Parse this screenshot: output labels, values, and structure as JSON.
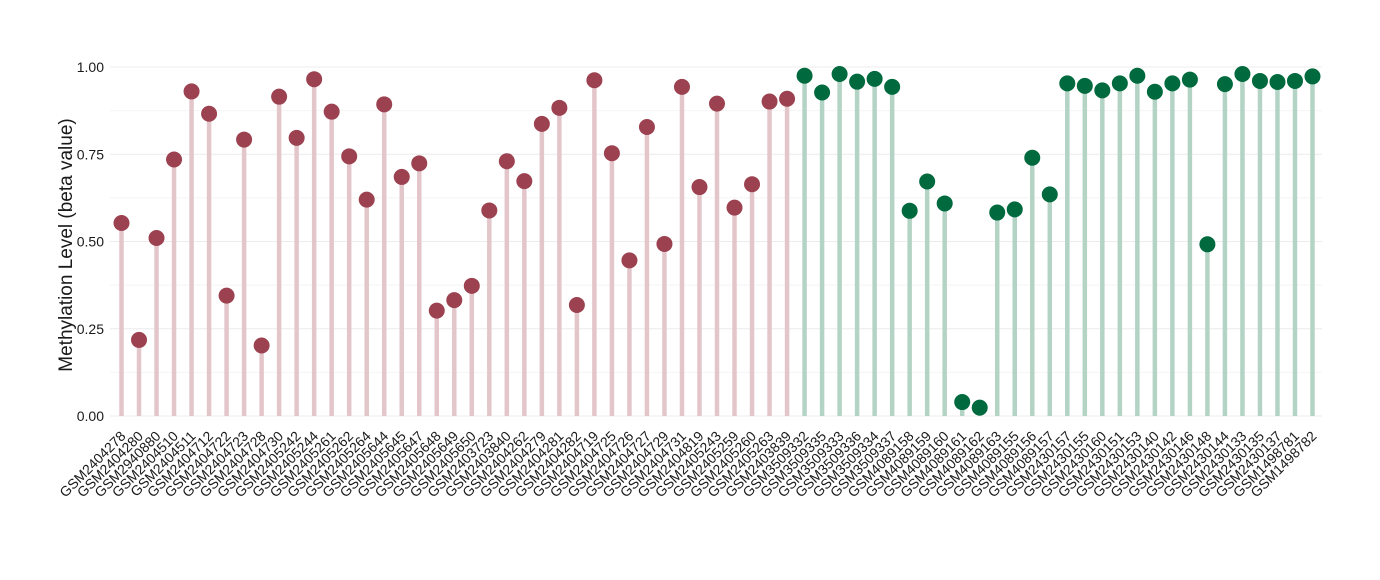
{
  "chart_data": {
    "type": "lollipop",
    "ylabel": "Methylation Level (beta value)",
    "ylim": [
      0,
      1
    ],
    "yticks": [
      "0.00",
      "0.25",
      "0.50",
      "0.75",
      "1.00"
    ],
    "grid": true,
    "legend": "none",
    "colors": {
      "group_a_point": "#9c4150",
      "group_a_stem": "#e3c6ca",
      "group_b_point": "#006a3e",
      "group_b_stem": "#b3d3c5",
      "gridline": "#ececec"
    },
    "samples": [
      {
        "label": "GSM2404278",
        "value": 0.553,
        "group": "a"
      },
      {
        "label": "GSM2404280",
        "value": 0.218,
        "group": "a"
      },
      {
        "label": "GSM2940880",
        "value": 0.51,
        "group": "a"
      },
      {
        "label": "GSM2404510",
        "value": 0.735,
        "group": "a"
      },
      {
        "label": "GSM2404511",
        "value": 0.93,
        "group": "a"
      },
      {
        "label": "GSM2404712",
        "value": 0.866,
        "group": "a"
      },
      {
        "label": "GSM2404722",
        "value": 0.345,
        "group": "a"
      },
      {
        "label": "GSM2404723",
        "value": 0.792,
        "group": "a"
      },
      {
        "label": "GSM2404728",
        "value": 0.202,
        "group": "a"
      },
      {
        "label": "GSM2404730",
        "value": 0.915,
        "group": "a"
      },
      {
        "label": "GSM2405242",
        "value": 0.797,
        "group": "a"
      },
      {
        "label": "GSM2405244",
        "value": 0.965,
        "group": "a"
      },
      {
        "label": "GSM2405261",
        "value": 0.872,
        "group": "a"
      },
      {
        "label": "GSM2405262",
        "value": 0.744,
        "group": "a"
      },
      {
        "label": "GSM2405264",
        "value": 0.62,
        "group": "a"
      },
      {
        "label": "GSM2405644",
        "value": 0.893,
        "group": "a"
      },
      {
        "label": "GSM2405645",
        "value": 0.685,
        "group": "a"
      },
      {
        "label": "GSM2405647",
        "value": 0.724,
        "group": "a"
      },
      {
        "label": "GSM2405648",
        "value": 0.302,
        "group": "a"
      },
      {
        "label": "GSM2405649",
        "value": 0.332,
        "group": "a"
      },
      {
        "label": "GSM2405650",
        "value": 0.373,
        "group": "a"
      },
      {
        "label": "GSM2403723",
        "value": 0.589,
        "group": "a"
      },
      {
        "label": "GSM2403840",
        "value": 0.73,
        "group": "a"
      },
      {
        "label": "GSM2404262",
        "value": 0.673,
        "group": "a"
      },
      {
        "label": "GSM2404279",
        "value": 0.837,
        "group": "a"
      },
      {
        "label": "GSM2404281",
        "value": 0.883,
        "group": "a"
      },
      {
        "label": "GSM2404282",
        "value": 0.318,
        "group": "a"
      },
      {
        "label": "GSM2404719",
        "value": 0.962,
        "group": "a"
      },
      {
        "label": "GSM2404725",
        "value": 0.753,
        "group": "a"
      },
      {
        "label": "GSM2404726",
        "value": 0.446,
        "group": "a"
      },
      {
        "label": "GSM2404727",
        "value": 0.828,
        "group": "a"
      },
      {
        "label": "GSM2404729",
        "value": 0.493,
        "group": "a"
      },
      {
        "label": "GSM2404731",
        "value": 0.943,
        "group": "a"
      },
      {
        "label": "GSM2404819",
        "value": 0.656,
        "group": "a"
      },
      {
        "label": "GSM2405243",
        "value": 0.895,
        "group": "a"
      },
      {
        "label": "GSM2405259",
        "value": 0.597,
        "group": "a"
      },
      {
        "label": "GSM2405260",
        "value": 0.664,
        "group": "a"
      },
      {
        "label": "GSM2405263",
        "value": 0.901,
        "group": "a"
      },
      {
        "label": "GSM2403839",
        "value": 0.909,
        "group": "a"
      },
      {
        "label": "GSM3509332",
        "value": 0.975,
        "group": "b"
      },
      {
        "label": "GSM3509335",
        "value": 0.927,
        "group": "b"
      },
      {
        "label": "GSM3509333",
        "value": 0.98,
        "group": "b"
      },
      {
        "label": "GSM3509336",
        "value": 0.958,
        "group": "b"
      },
      {
        "label": "GSM3509334",
        "value": 0.966,
        "group": "b"
      },
      {
        "label": "GSM3509337",
        "value": 0.943,
        "group": "b"
      },
      {
        "label": "GSM4089158",
        "value": 0.588,
        "group": "b"
      },
      {
        "label": "GSM4089159",
        "value": 0.672,
        "group": "b"
      },
      {
        "label": "GSM4089160",
        "value": 0.609,
        "group": "b"
      },
      {
        "label": "GSM4089161",
        "value": 0.04,
        "group": "b"
      },
      {
        "label": "GSM4089162",
        "value": 0.024,
        "group": "b"
      },
      {
        "label": "GSM4089163",
        "value": 0.583,
        "group": "b"
      },
      {
        "label": "GSM4089155",
        "value": 0.592,
        "group": "b"
      },
      {
        "label": "GSM4089156",
        "value": 0.74,
        "group": "b"
      },
      {
        "label": "GSM4089157",
        "value": 0.635,
        "group": "b"
      },
      {
        "label": "GSM2430157",
        "value": 0.953,
        "group": "b"
      },
      {
        "label": "GSM2430155",
        "value": 0.946,
        "group": "b"
      },
      {
        "label": "GSM2430160",
        "value": 0.933,
        "group": "b"
      },
      {
        "label": "GSM2430151",
        "value": 0.953,
        "group": "b"
      },
      {
        "label": "GSM2430153",
        "value": 0.975,
        "group": "b"
      },
      {
        "label": "GSM2430140",
        "value": 0.929,
        "group": "b"
      },
      {
        "label": "GSM2430142",
        "value": 0.953,
        "group": "b"
      },
      {
        "label": "GSM2430146",
        "value": 0.964,
        "group": "b"
      },
      {
        "label": "GSM2430148",
        "value": 0.492,
        "group": "b"
      },
      {
        "label": "GSM2430144",
        "value": 0.951,
        "group": "b"
      },
      {
        "label": "GSM2430133",
        "value": 0.98,
        "group": "b"
      },
      {
        "label": "GSM2430135",
        "value": 0.96,
        "group": "b"
      },
      {
        "label": "GSM2430137",
        "value": 0.957,
        "group": "b"
      },
      {
        "label": "GSM1498781",
        "value": 0.96,
        "group": "b"
      },
      {
        "label": "GSM1498782",
        "value": 0.973,
        "group": "b"
      }
    ]
  }
}
